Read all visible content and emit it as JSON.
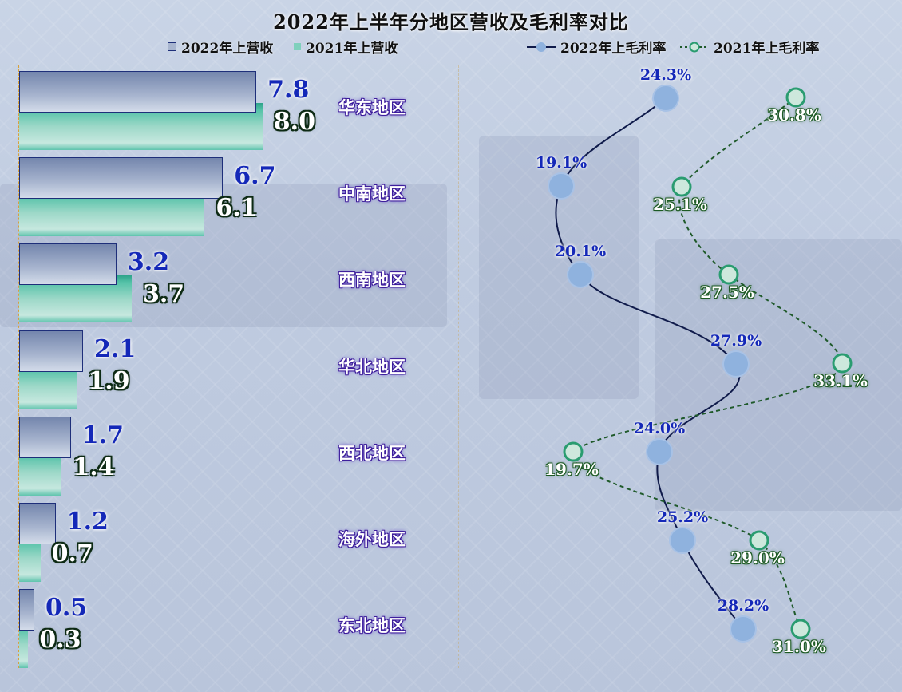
{
  "title": "2022年上半年分地区营收及毛利率对比",
  "legend": {
    "rev2022": "2022年上营收",
    "rev2021": "2021年上营收",
    "gm2022": "2022年上毛利率",
    "gm2021": "2021年上毛利率"
  },
  "regions": [
    {
      "name": "华东地区",
      "rev2022": "7.8",
      "rev2021": "8.0",
      "gm2022": "24.3%",
      "gm2021": "30.8%"
    },
    {
      "name": "中南地区",
      "rev2022": "6.7",
      "rev2021": "6.1",
      "gm2022": "19.1%",
      "gm2021": "25.1%"
    },
    {
      "name": "西南地区",
      "rev2022": "3.2",
      "rev2021": "3.7",
      "gm2022": "20.1%",
      "gm2021": "27.5%"
    },
    {
      "name": "华北地区",
      "rev2022": "2.1",
      "rev2021": "1.9",
      "gm2022": "27.9%",
      "gm2021": "33.1%"
    },
    {
      "name": "西北地区",
      "rev2022": "1.7",
      "rev2021": "1.4",
      "gm2022": "24.0%",
      "gm2021": "19.7%"
    },
    {
      "name": "海外地区",
      "rev2022": "1.2",
      "rev2021": "0.7",
      "gm2022": "25.2%",
      "gm2021": "29.0%"
    },
    {
      "name": "东北地区",
      "rev2022": "0.5",
      "rev2021": "0.3",
      "gm2022": "28.2%",
      "gm2021": "31.0%"
    }
  ],
  "colors": {
    "rev2022": "#7486ad",
    "rev2021": "#3fb59b",
    "gm2022_line": "#0f1a4a",
    "gm2021_line": "#1f5a2a",
    "label_blue": "#1428b8"
  },
  "chart_data": [
    {
      "type": "bar",
      "title": "2022年上半年分地区营收及毛利率对比",
      "orientation": "horizontal",
      "categories": [
        "华东地区",
        "中南地区",
        "西南地区",
        "华北地区",
        "西北地区",
        "海外地区",
        "东北地区"
      ],
      "series": [
        {
          "name": "2022年上营收",
          "values": [
            7.8,
            6.7,
            3.2,
            2.1,
            1.7,
            1.2,
            0.5
          ]
        },
        {
          "name": "2021年上营收",
          "values": [
            8.0,
            6.1,
            3.7,
            1.9,
            1.4,
            0.7,
            0.3
          ]
        }
      ],
      "legend_position": "top"
    },
    {
      "type": "line",
      "categories": [
        "华东地区",
        "中南地区",
        "西南地区",
        "华北地区",
        "西北地区",
        "海外地区",
        "东北地区"
      ],
      "series": [
        {
          "name": "2022年上毛利率",
          "values": [
            24.3,
            19.1,
            20.1,
            27.9,
            24.0,
            25.2,
            28.2
          ],
          "unit": "%"
        },
        {
          "name": "2021年上毛利率",
          "values": [
            30.8,
            25.1,
            27.5,
            33.1,
            19.7,
            29.0,
            31.0
          ],
          "unit": "%"
        }
      ],
      "legend_position": "top"
    }
  ]
}
